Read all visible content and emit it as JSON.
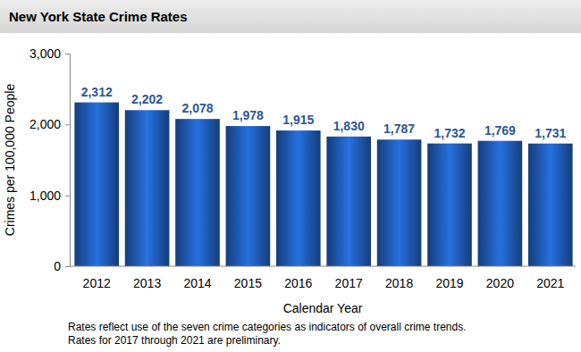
{
  "chart_data": {
    "type": "bar",
    "title": "New York State Crime Rates",
    "x_label": "Calendar Year",
    "y_label": "Crimes per 100,000 People",
    "notes": [
      "Rates reflect use of the seven crime categories as indicators of overall crime trends.",
      "Rates for 2017 through 2021 are preliminary."
    ],
    "categories": [
      "2012",
      "2013",
      "2014",
      "2015",
      "2016",
      "2017",
      "2018",
      "2019",
      "2020",
      "2021"
    ],
    "values": [
      2312,
      2202,
      2078,
      1978,
      1915,
      1830,
      1787,
      1732,
      1769,
      1731
    ],
    "value_labels": [
      "2,312",
      "2,202",
      "2,078",
      "1,978",
      "1,915",
      "1,830",
      "1,787",
      "1,732",
      "1,769",
      "1,731"
    ],
    "color": "#1f5bb5",
    "ylim": [
      0,
      3000
    ],
    "yticks": [
      0,
      {
        "value": 1000,
        "label": "1,000"
      },
      {
        "value": 2000,
        "label": "2,000"
      },
      {
        "value": 3000,
        "label": "3,000"
      }
    ],
    "grid": false,
    "data_labels": true
  }
}
